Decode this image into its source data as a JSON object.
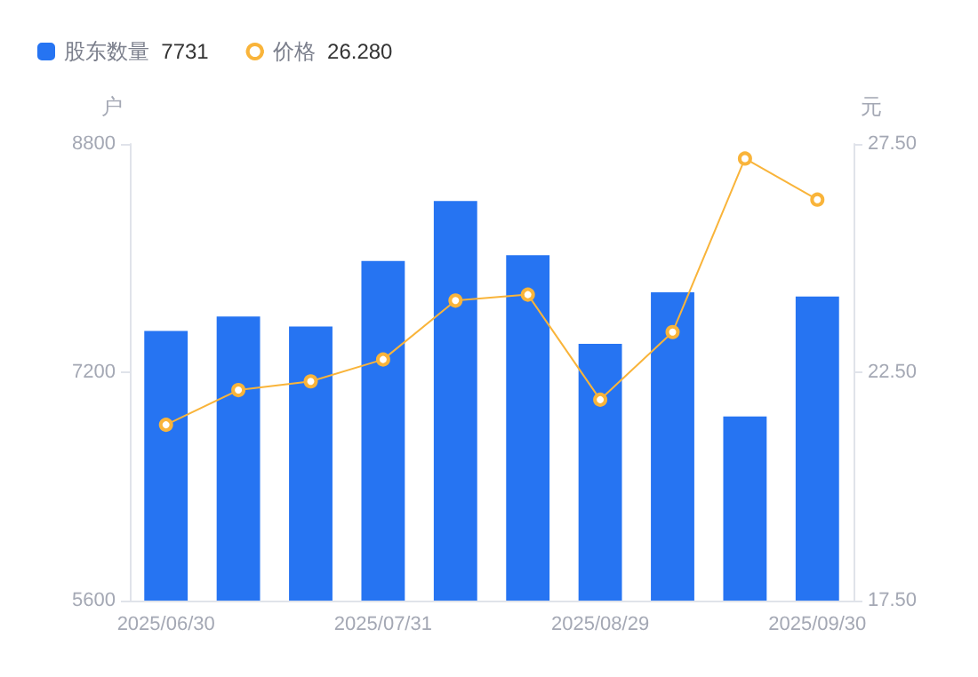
{
  "chart_data": {
    "type": "bar",
    "categories": [
      "2025/06/30",
      null,
      null,
      "2025/07/31",
      null,
      null,
      "2025/08/29",
      null,
      null,
      "2025/09/30"
    ],
    "series": [
      {
        "name": "股东数量 7731",
        "color": "#2674f2",
        "values": [
          7490,
          7590,
          7520,
          7980,
          8400,
          8020,
          7400,
          7760,
          6890,
          7731
        ]
      },
      {
        "name": "价格 26.280",
        "type": "line",
        "axis": "y2",
        "color": "#f9b43a",
        "marker": "circle",
        "values": [
          21.35,
          22.11,
          22.3,
          22.78,
          24.07,
          24.2,
          21.9,
          23.38,
          27.18,
          26.28
        ]
      }
    ],
    "ylabel": "户",
    "y2label": "元",
    "ylim": [
      5600,
      8800
    ],
    "yticks": [
      5600,
      7200,
      8800
    ],
    "y2lim": [
      17.5,
      27.5
    ],
    "y2ticks": [
      {
        "value": 17.5,
        "label": "17.50"
      },
      {
        "value": 22.5,
        "label": "22.50"
      },
      {
        "value": 27.5,
        "label": "27.50"
      }
    ],
    "grid": false,
    "legend": "top left"
  }
}
